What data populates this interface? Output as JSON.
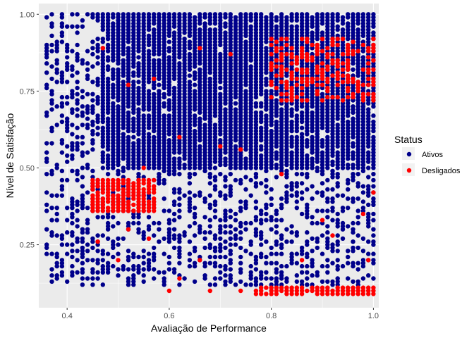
{
  "chart_data": {
    "type": "scatter",
    "title": "",
    "xlabel": "Avaliação de Performance",
    "ylabel": "Nível de Satisfação",
    "xlim": [
      0.3445,
      1.0105
    ],
    "ylim": [
      0.045,
      1.035
    ],
    "x_ticks": [
      0.4,
      0.6,
      0.8,
      1.0
    ],
    "x_tick_labels": [
      "0.4",
      "0.6",
      "0.8",
      "1.0"
    ],
    "y_ticks": [
      0.25,
      0.5,
      0.75,
      1.0
    ],
    "y_tick_labels": [
      "0.25",
      "0.50",
      "0.75",
      "1.00"
    ],
    "grid": true,
    "panel_background": "#ebebeb",
    "grid_color": "#ffffff",
    "legend": {
      "title": "Status",
      "placement": "right",
      "entries": [
        {
          "label": "Ativos",
          "color": "#00008b"
        },
        {
          "label": "Desligados",
          "color": "#ff0000"
        }
      ]
    },
    "series": [
      {
        "name": "Ativos",
        "color": "#00008b",
        "regions": [
          {
            "x": [
              0.36,
              1.0
            ],
            "y": [
              0.12,
              1.0
            ],
            "density": "sparse"
          },
          {
            "x": [
              0.47,
              1.0
            ],
            "y": [
              0.5,
              1.0
            ],
            "density": "dense"
          }
        ]
      },
      {
        "name": "Desligados",
        "color": "#ff0000",
        "clusters": [
          {
            "x": [
              0.45,
              0.57
            ],
            "y": [
              0.36,
              0.46
            ]
          },
          {
            "x": [
              0.77,
              1.0
            ],
            "y": [
              0.09,
              0.11
            ]
          },
          {
            "x": [
              0.8,
              1.0
            ],
            "y": [
              0.72,
              0.92
            ]
          }
        ],
        "scattered_points": [
          [
            0.47,
            0.89
          ],
          [
            0.52,
            0.77
          ],
          [
            0.57,
            0.79
          ],
          [
            0.66,
            0.89
          ],
          [
            0.72,
            0.87
          ],
          [
            0.62,
            0.6
          ],
          [
            0.55,
            0.5
          ],
          [
            0.7,
            0.57
          ],
          [
            0.74,
            0.56
          ],
          [
            0.82,
            0.48
          ],
          [
            0.62,
            0.14
          ],
          [
            0.66,
            0.2
          ],
          [
            0.6,
            0.1
          ],
          [
            0.5,
            0.2
          ],
          [
            0.52,
            0.3
          ],
          [
            0.56,
            0.27
          ],
          [
            0.92,
            0.28
          ],
          [
            0.98,
            0.35
          ],
          [
            0.99,
            0.2
          ],
          [
            1.0,
            0.42
          ],
          [
            0.46,
            0.26
          ],
          [
            0.68,
            0.1
          ],
          [
            0.74,
            0.1
          ],
          [
            0.86,
            0.2
          ],
          [
            0.9,
            0.33
          ]
        ]
      }
    ]
  }
}
